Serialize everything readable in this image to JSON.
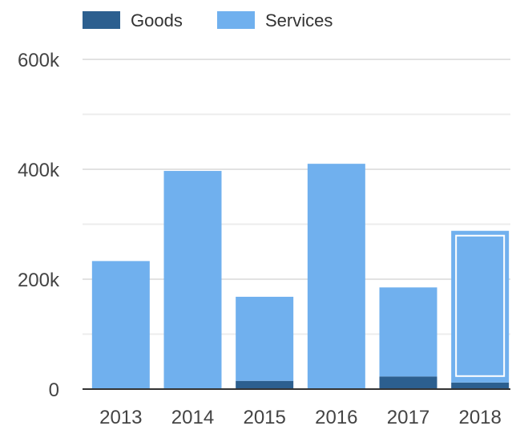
{
  "chart_data": {
    "type": "bar",
    "stacked": true,
    "categories": [
      "2013",
      "2014",
      "2015",
      "2016",
      "2017",
      "2018"
    ],
    "series": [
      {
        "name": "Goods",
        "color": "#2c5f8f",
        "values": [
          0,
          0,
          15000,
          0,
          23000,
          12000
        ]
      },
      {
        "name": "Services",
        "color": "#70b0ee",
        "values": [
          233000,
          397000,
          153000,
          410000,
          162000,
          276000
        ]
      }
    ],
    "ylim": [
      0,
      600000
    ],
    "yticks": [
      0,
      200000,
      400000,
      600000
    ],
    "ytick_labels": [
      "0",
      "200k",
      "400k",
      "600k"
    ],
    "minor_gridlines": [
      100000,
      300000,
      500000
    ],
    "grid": true,
    "legend": "top-left",
    "highlighted_category": "2018",
    "title": "",
    "xlabel": "",
    "ylabel": ""
  }
}
